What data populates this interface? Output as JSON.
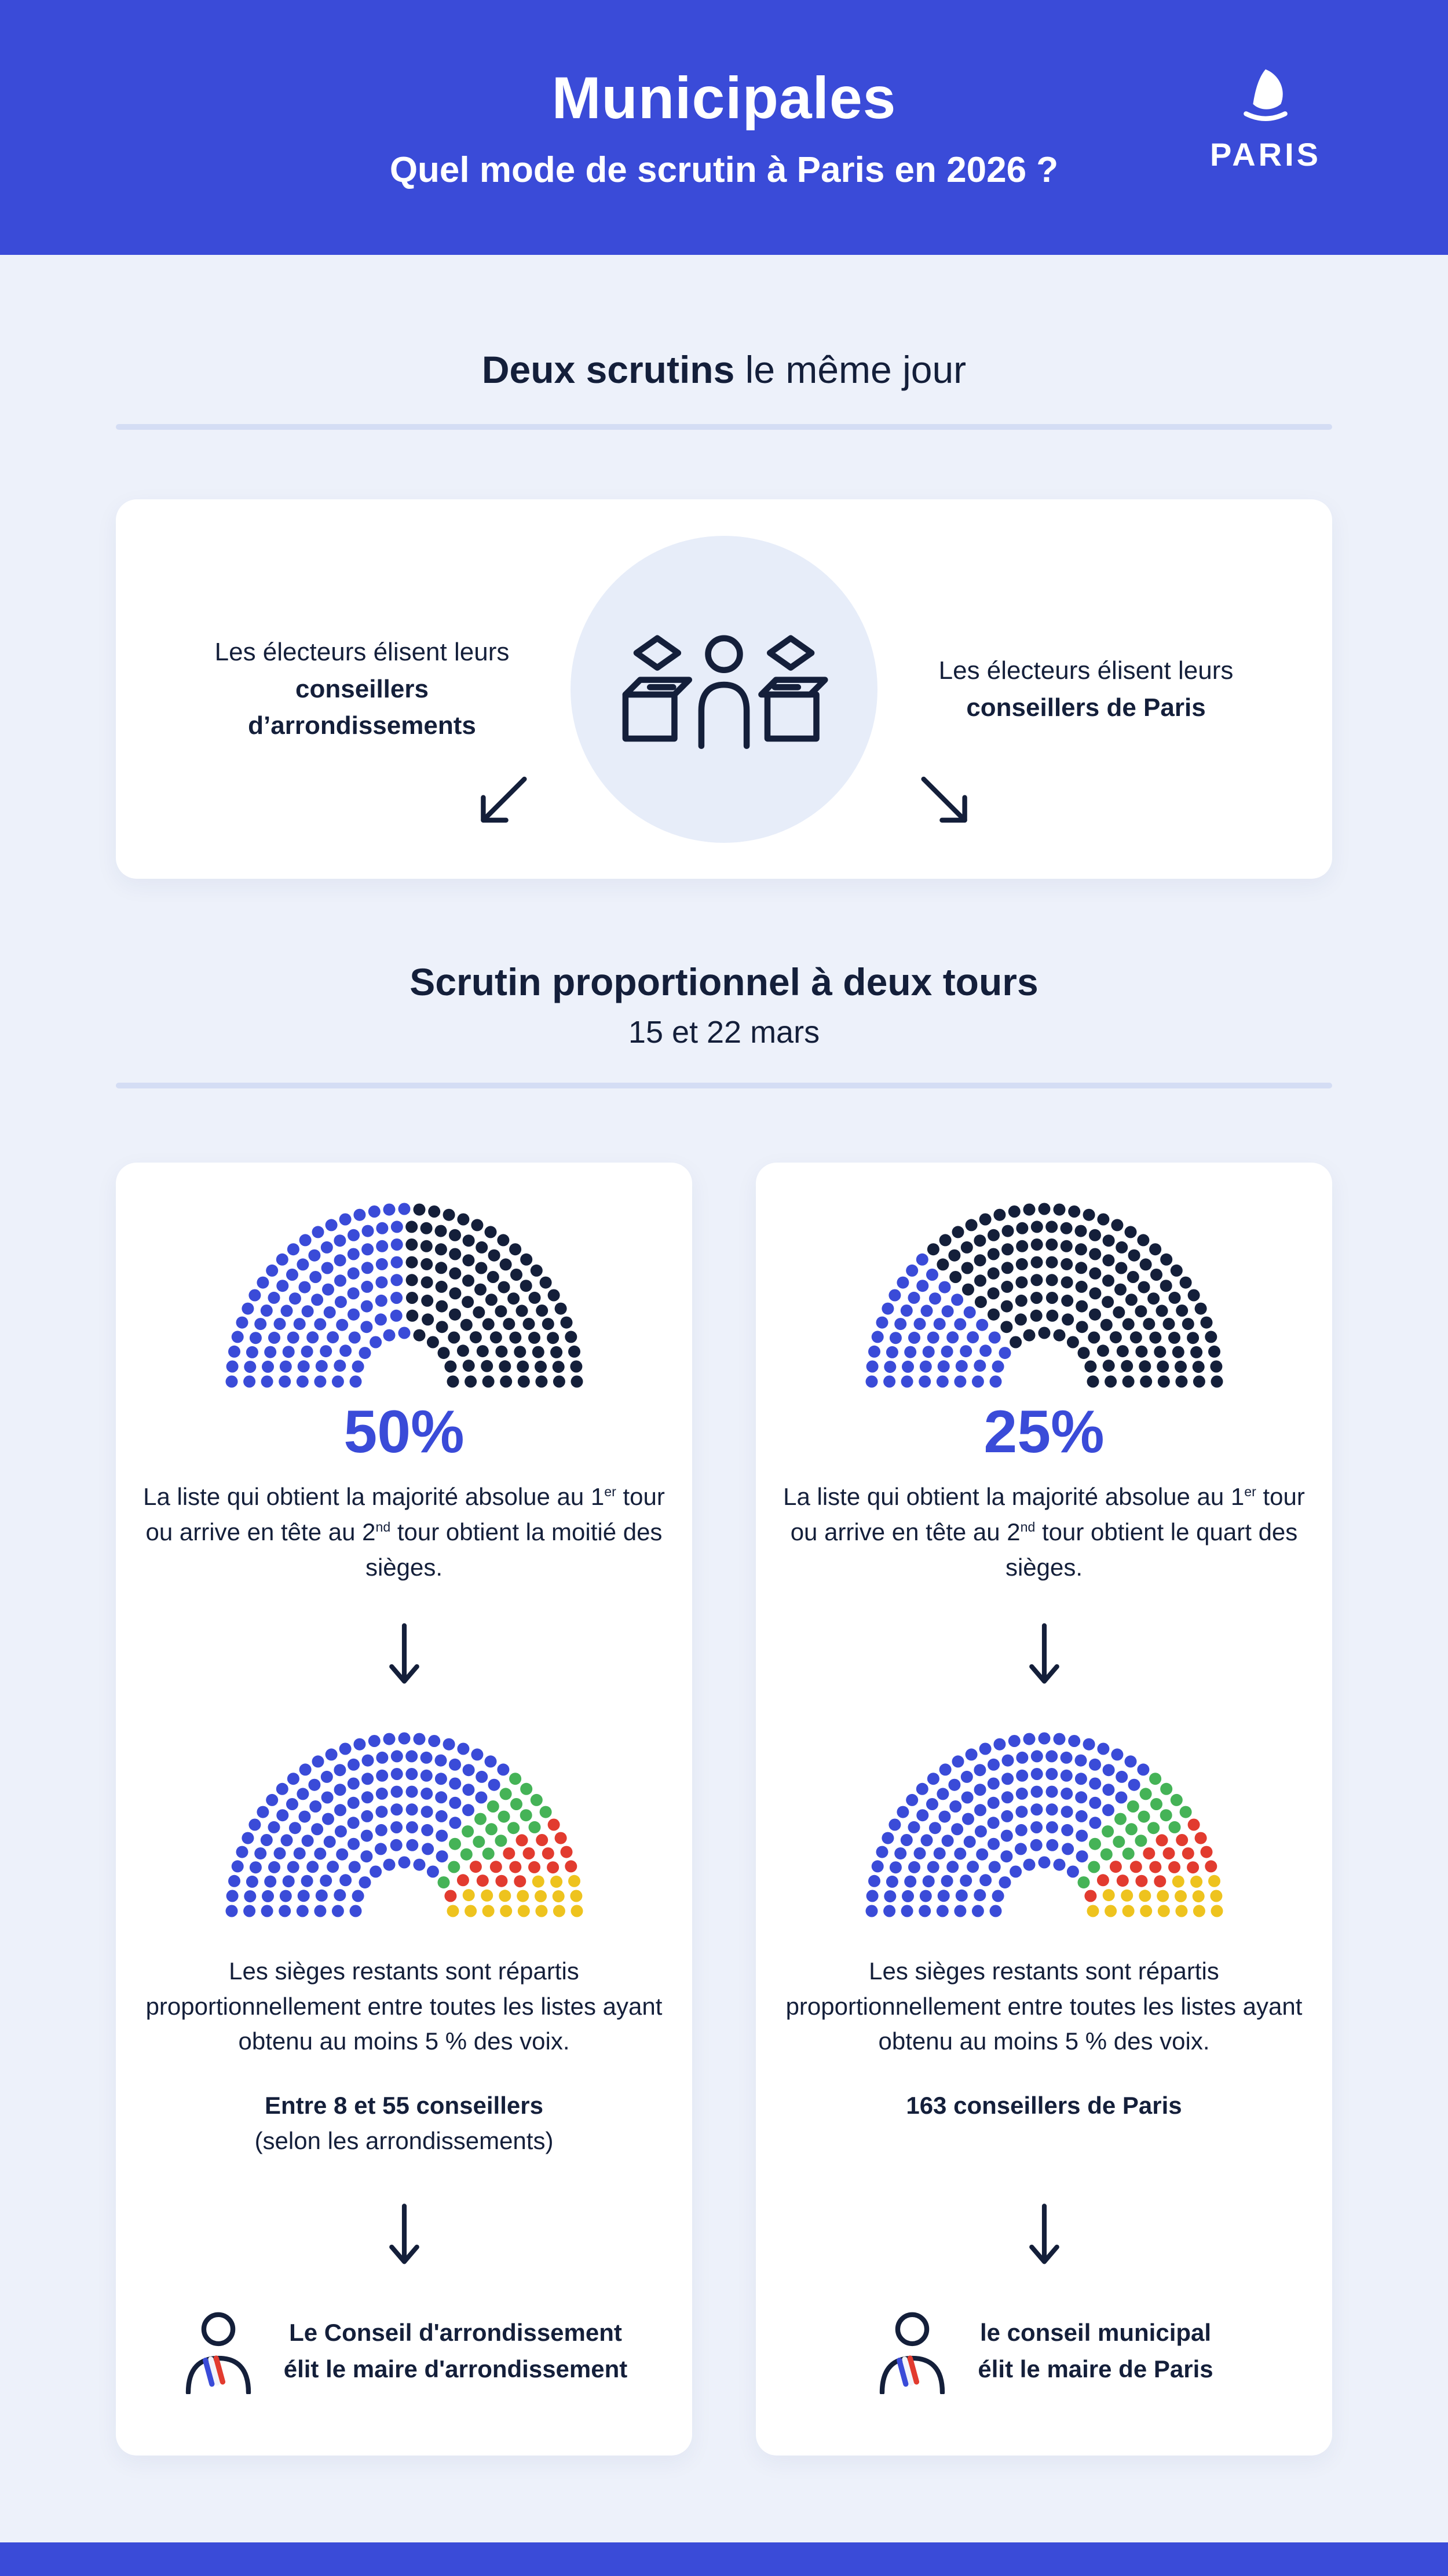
{
  "header": {
    "title": "Municipales",
    "subtitle": "Quel mode de scrutin à Paris en 2026 ?",
    "logo_text": "PARIS"
  },
  "colors": {
    "primary_blue": "#3a4bd8",
    "navy": "#141f3a",
    "green": "#45b357",
    "red": "#e23b2f",
    "yellow": "#eec31e",
    "background": "#edf1fa",
    "divider": "#d4ddf4",
    "circle_bg": "#e7edf9"
  },
  "section_one": {
    "title_bold": "Deux scrutins",
    "title_rest": " le même jour",
    "left_pre": "Les électeurs élisent leurs ",
    "left_bold": "conseillers d’arrondissements",
    "right_pre": "Les électeurs élisent leurs ",
    "right_bold": "conseillers de Paris"
  },
  "section_two": {
    "title": "Scrutin proportionnel à deux tours",
    "date": "15 et 22 mars"
  },
  "cards": {
    "left": {
      "percent": "50%",
      "p1_a": "La liste qui obtient la majorité absolue au 1",
      "p1_sup1": "er",
      "p1_b": " tour ou arrive en tête au 2",
      "p1_sup2": "nd",
      "p1_c": " tour obtient la moitié des sièges.",
      "p2": "Les sièges restants sont répartis proportionnellement entre toutes les listes ayant obtenu au moins 5 % des voix.",
      "bold1": "Entre 8 et 55 conseillers",
      "bold2": "(selon les arrondissements)",
      "mayor1": "Le Conseil d'arrondissement",
      "mayor2": "élit le maire d'arrondissement"
    },
    "right": {
      "percent": "25%",
      "p1_a": "La liste qui obtient la majorité absolue au 1",
      "p1_sup1": "er",
      "p1_b": " tour ou arrive en tête au 2",
      "p1_sup2": "nd",
      "p1_c": " tour obtient le quart des sièges.",
      "p2": "Les sièges restants sont répartis proportionnellement entre toutes les listes ayant obtenu au moins 5 % des voix.",
      "bold1": "163 conseillers de Paris",
      "bold2": "",
      "mayor1": "le conseil municipal",
      "mayor2": "élit le maire de Paris"
    }
  },
  "chart_data": [
    {
      "id": "arrondissement-majorite",
      "type": "parliament-dots",
      "rows": 8,
      "segments": [
        {
          "color": "#3a4bd8",
          "fraction": 0.5
        },
        {
          "color": "#141f3a",
          "fraction": 0.5
        }
      ]
    },
    {
      "id": "paris-majorite",
      "type": "parliament-dots",
      "rows": 8,
      "segments": [
        {
          "color": "#3a4bd8",
          "fraction": 0.25
        },
        {
          "color": "#141f3a",
          "fraction": 0.75
        }
      ]
    },
    {
      "id": "arrondissement-proportionnelle",
      "type": "parliament-dots",
      "rows": 8,
      "segments": [
        {
          "color": "#3a4bd8",
          "fraction": 0.7
        },
        {
          "color": "#45b357",
          "fraction": 0.12
        },
        {
          "color": "#e23b2f",
          "fraction": 0.1
        },
        {
          "color": "#eec31e",
          "fraction": 0.08
        }
      ]
    },
    {
      "id": "paris-proportionnelle",
      "type": "parliament-dots",
      "rows": 8,
      "segments": [
        {
          "color": "#3a4bd8",
          "fraction": 0.7
        },
        {
          "color": "#45b357",
          "fraction": 0.12
        },
        {
          "color": "#e23b2f",
          "fraction": 0.1
        },
        {
          "color": "#eec31e",
          "fraction": 0.08
        }
      ]
    }
  ]
}
